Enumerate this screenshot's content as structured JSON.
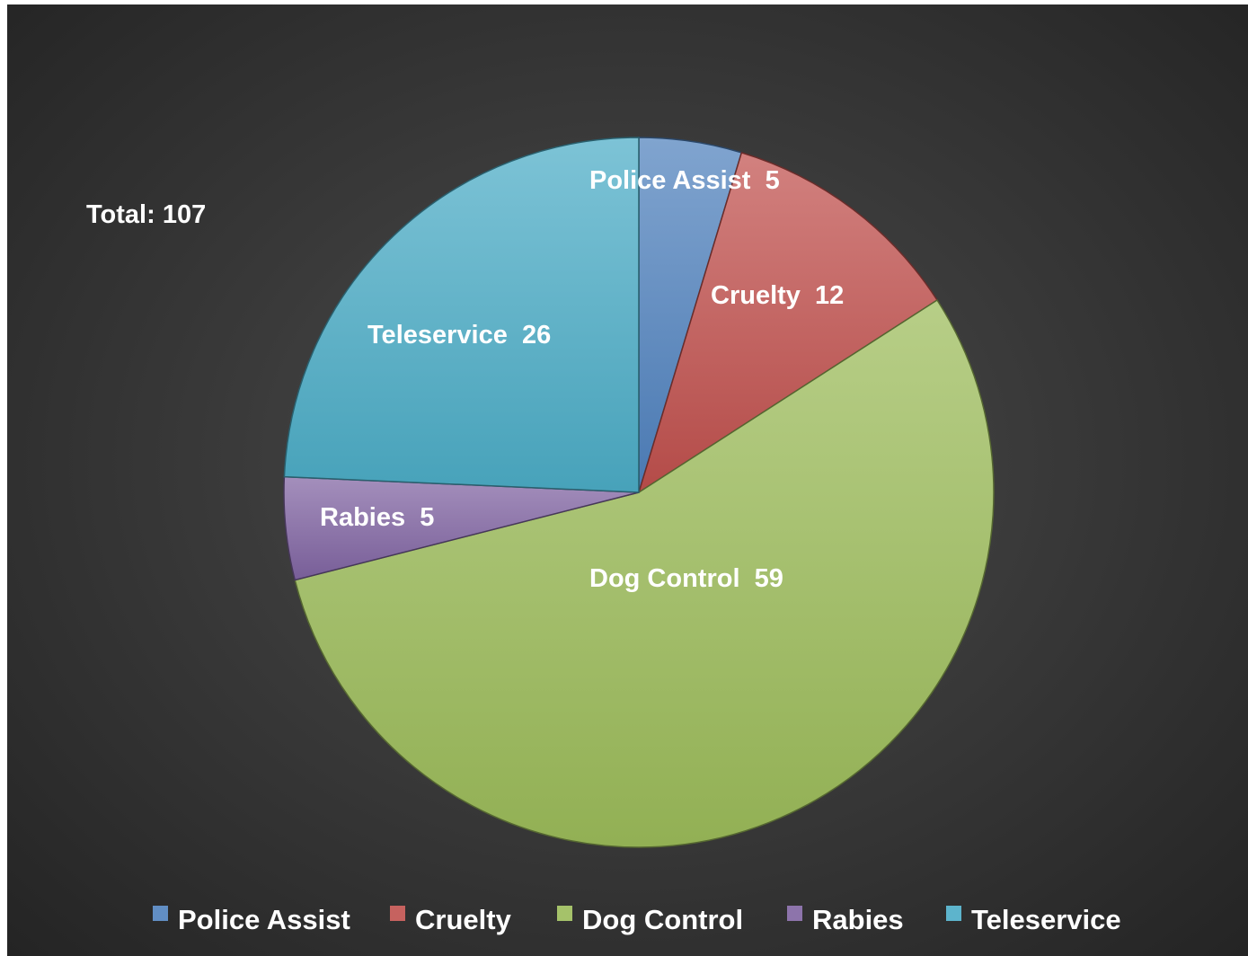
{
  "chart_data": {
    "type": "pie",
    "categories": [
      "Police Assist",
      "Cruelty",
      "Dog Control",
      "Rabies",
      "Teleservice"
    ],
    "values": [
      5,
      12,
      59,
      5,
      26
    ],
    "data_labels": [
      "Police Assist  5",
      "Cruelty  12",
      "Dog Control  59",
      "Rabies  5",
      "Teleservice  26"
    ],
    "colors": [
      "#4f81bd",
      "#c0504d",
      "#9bbb59",
      "#8064a2",
      "#4bacc6"
    ],
    "annotation": "Total: 107",
    "legend_position": "bottom",
    "start_angle": "12 o'clock, clockwise"
  }
}
